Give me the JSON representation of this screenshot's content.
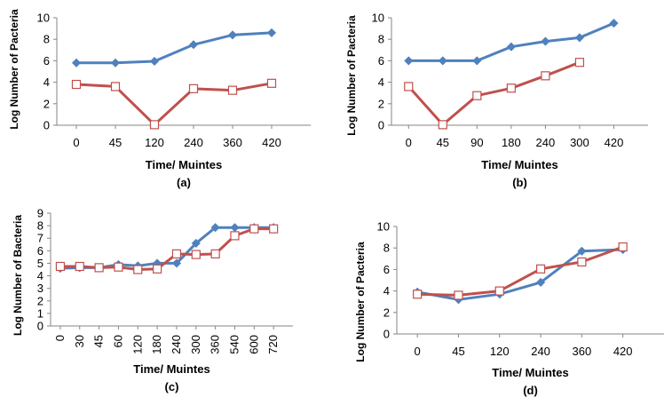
{
  "colors": {
    "blue": "#4F81BD",
    "red": "#C0504D",
    "axis": "#868686"
  },
  "chart_data": [
    {
      "type": "line",
      "caption": "(a)",
      "xlabel": "Time/ Muintes",
      "ylabel": "Log Number of Pacteria",
      "categories": [
        "0",
        "45",
        "120",
        "240",
        "360",
        "420"
      ],
      "ylim": [
        0,
        10
      ],
      "yticks": [
        "0",
        "2",
        "4",
        "6",
        "8",
        "10"
      ],
      "series": [
        {
          "name": "series-1",
          "color": "blue",
          "marker": "diamond",
          "values": [
            5.8,
            5.8,
            5.95,
            7.5,
            8.4,
            8.6
          ]
        },
        {
          "name": "series-2",
          "color": "red",
          "marker": "square",
          "values": [
            3.8,
            3.6,
            0.05,
            3.4,
            3.25,
            3.9
          ]
        }
      ]
    },
    {
      "type": "line",
      "caption": "(b)",
      "xlabel": "Time/ Muintes",
      "ylabel": "Log Number of Pacteria",
      "categories": [
        "0",
        "45",
        "90",
        "180",
        "240",
        "300",
        "420"
      ],
      "ylim": [
        0,
        10
      ],
      "yticks": [
        "0",
        "2",
        "4",
        "6",
        "8",
        "10"
      ],
      "series": [
        {
          "name": "series-1",
          "color": "blue",
          "marker": "diamond",
          "values": [
            6.0,
            6.0,
            6.0,
            7.3,
            7.8,
            8.15,
            9.5
          ]
        },
        {
          "name": "series-2",
          "color": "red",
          "marker": "square",
          "values": [
            3.6,
            0.05,
            2.75,
            3.45,
            4.6,
            5.85,
            null
          ]
        }
      ]
    },
    {
      "type": "line",
      "caption": "(c)",
      "xlabel": "Time/ Muintes",
      "ylabel": "Log Number of Bacteria",
      "categories": [
        "0",
        "30",
        "45",
        "60",
        "120",
        "180",
        "240",
        "300",
        "360",
        "540",
        "600",
        "720"
      ],
      "ylim": [
        0,
        9
      ],
      "yticks": [
        "0",
        "1",
        "2",
        "3",
        "4",
        "5",
        "6",
        "7",
        "8",
        "9"
      ],
      "series": [
        {
          "name": "series-1",
          "color": "blue",
          "marker": "diamond",
          "values": [
            4.6,
            4.65,
            4.65,
            4.9,
            4.8,
            5.0,
            5.0,
            6.6,
            7.85,
            7.85,
            7.85,
            7.85
          ]
        },
        {
          "name": "series-2",
          "color": "red",
          "marker": "square",
          "values": [
            4.75,
            4.75,
            4.65,
            4.7,
            4.5,
            4.55,
            5.75,
            5.7,
            5.75,
            7.2,
            7.75,
            7.75
          ]
        }
      ]
    },
    {
      "type": "line",
      "caption": "(d)",
      "xlabel": "Time/ Muintes",
      "ylabel": "Log Number of Pacteria",
      "categories": [
        "0",
        "45",
        "120",
        "240",
        "360",
        "420"
      ],
      "ylim": [
        0,
        10
      ],
      "yticks": [
        "0",
        "2",
        "4",
        "6",
        "8",
        "10"
      ],
      "series": [
        {
          "name": "series-1",
          "color": "blue",
          "marker": "diamond",
          "values": [
            3.9,
            3.2,
            3.7,
            4.8,
            7.7,
            7.85
          ]
        },
        {
          "name": "series-2",
          "color": "red",
          "marker": "square",
          "values": [
            3.7,
            3.6,
            4.0,
            6.05,
            6.7,
            8.1
          ]
        }
      ]
    }
  ]
}
